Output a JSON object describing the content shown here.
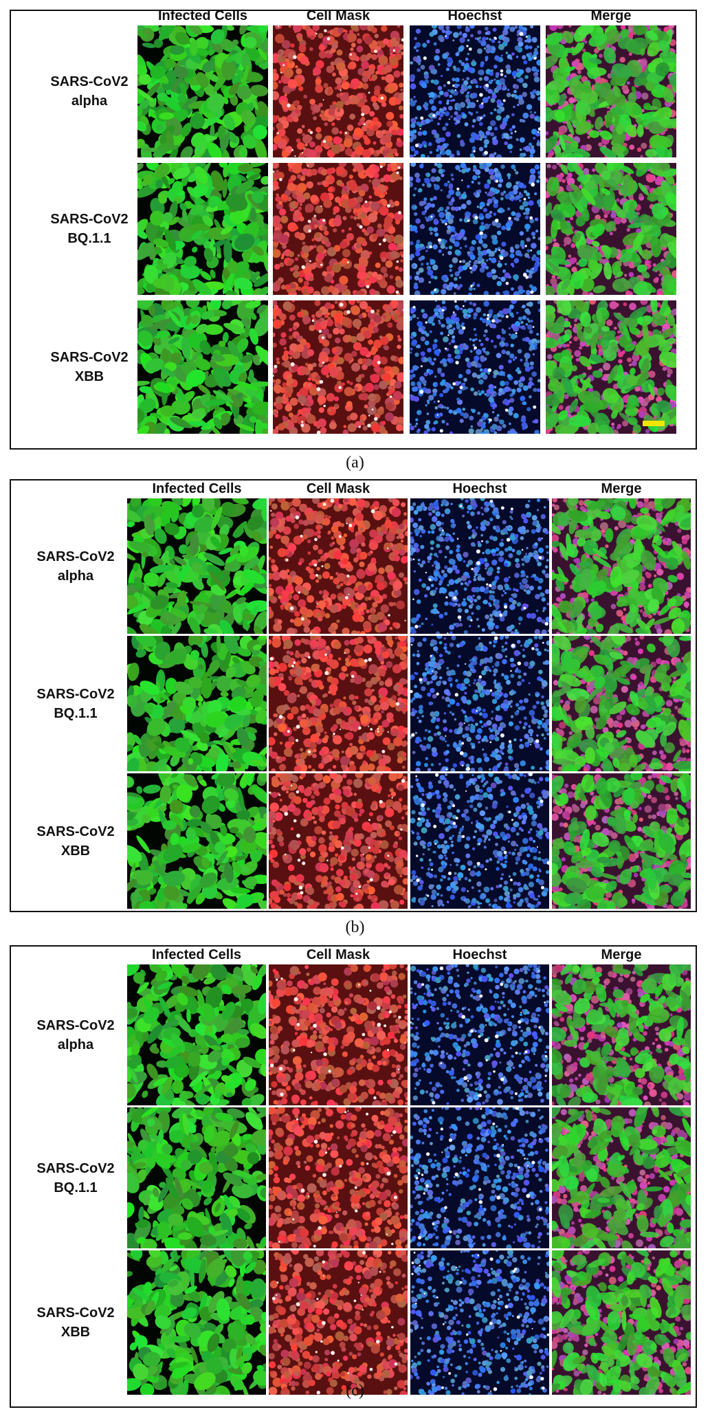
{
  "figure": {
    "panels": [
      {
        "caption": "(a)",
        "column_headers": [
          "Infected Cells",
          "Cell Mask",
          "Hoechst",
          "Merge"
        ],
        "rows": [
          {
            "line1": "SARS-CoV2",
            "line2": "alpha"
          },
          {
            "line1": "SARS-CoV2",
            "line2": "BQ.1.1"
          },
          {
            "line1": "SARS-CoV2",
            "line2": "XBB"
          }
        ],
        "scale_bar_color": "#f2e600"
      },
      {
        "caption": "(b)",
        "column_headers": [
          "Infected Cells",
          "Cell Mask",
          "Hoechst",
          "Merge"
        ],
        "rows": [
          {
            "line1": "SARS-CoV2",
            "line2": "alpha"
          },
          {
            "line1": "SARS-CoV2",
            "line2": "BQ.1.1"
          },
          {
            "line1": "SARS-CoV2",
            "line2": "XBB"
          }
        ]
      },
      {
        "caption": "(c)",
        "column_headers": [
          "Infected Cells",
          "Cell Mask",
          "Hoechst",
          "Merge"
        ],
        "rows": [
          {
            "line1": "SARS-CoV2",
            "line2": "alpha"
          },
          {
            "line1": "SARS-CoV2",
            "line2": "BQ.1.1"
          },
          {
            "line1": "SARS-CoV2",
            "line2": "XBB"
          }
        ]
      }
    ],
    "channel_colors": {
      "infected": "#2fbf2f",
      "cell_mask": "#d8423c",
      "hoechst": "#3f6ee6",
      "merge_base": "#5a1f3f"
    }
  }
}
